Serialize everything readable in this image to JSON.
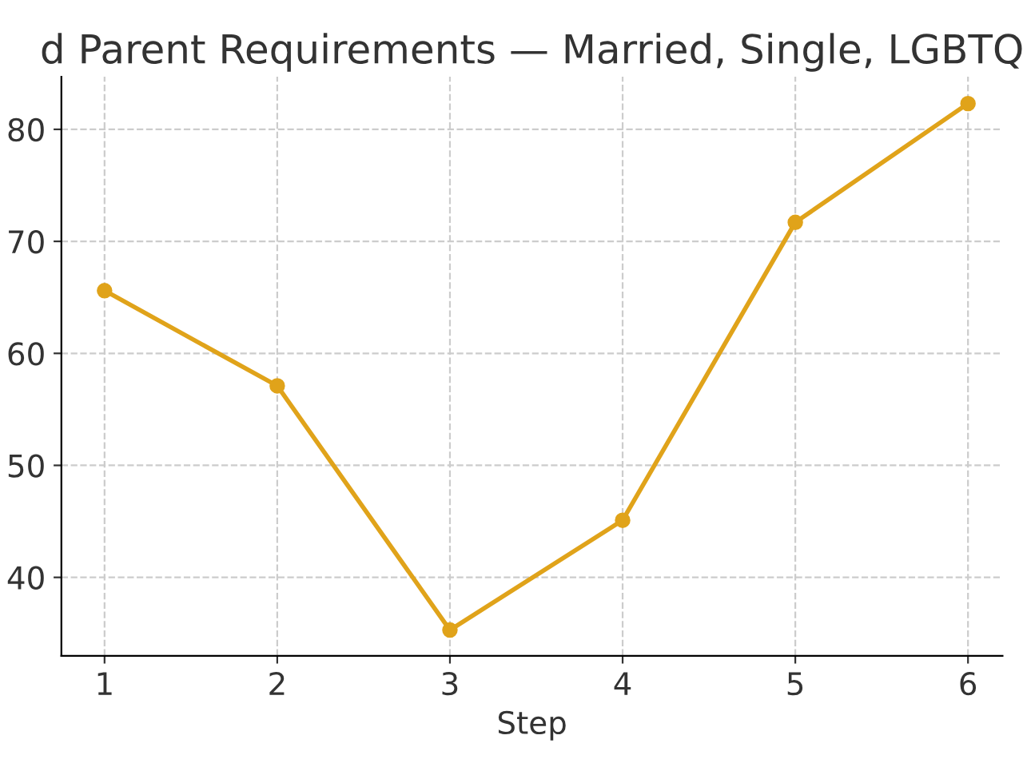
{
  "chart_data": {
    "type": "line",
    "title": "d Parent Requirements — Married, Single, LGBTQ",
    "xlabel": "Step",
    "x": [
      1,
      2,
      3,
      4,
      5,
      6
    ],
    "series": [
      {
        "color": "#e0a31a",
        "values": [
          65.6,
          57.1,
          35.3,
          45.1,
          71.7,
          82.3
        ]
      }
    ],
    "xlim": [
      0.75,
      6.2
    ],
    "ylim": [
      33,
      84.7
    ],
    "xticks": [
      1,
      2,
      3,
      4,
      5,
      6
    ],
    "yticks": [
      40,
      50,
      60,
      70,
      80
    ],
    "grid": true,
    "marker": "circle",
    "line_style": "solid",
    "legend": false
  }
}
